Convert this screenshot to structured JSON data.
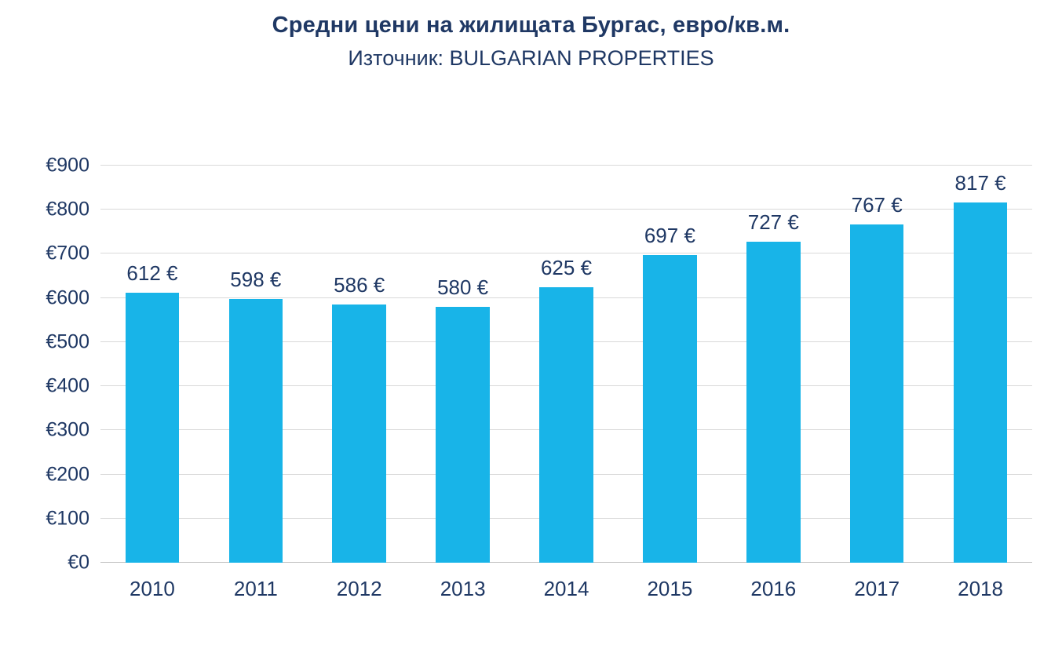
{
  "chart_data": {
    "type": "bar",
    "title": "Средни цени на жилищата Бургас, евро/кв.м.",
    "subtitle": "Източник: BULGARIAN PROPERTIES",
    "categories": [
      "2010",
      "2011",
      "2012",
      "2013",
      "2014",
      "2015",
      "2016",
      "2017",
      "2018"
    ],
    "values": [
      612,
      598,
      586,
      580,
      625,
      697,
      727,
      767,
      817
    ],
    "data_labels": [
      "612 €",
      "598 €",
      "586 €",
      "580 €",
      "625 €",
      "697 €",
      "727 €",
      "767 €",
      "817 €"
    ],
    "xlabel": "",
    "ylabel": "",
    "ylim": [
      0,
      900
    ],
    "ytick_step": 100,
    "ytick_labels": [
      "€0",
      "€100",
      "€200",
      "€300",
      "€400",
      "€500",
      "€600",
      "€700",
      "€800",
      "€900"
    ],
    "grid": true,
    "legend_position": "none",
    "bar_color": "#18B4E8",
    "text_color": "#1F3864",
    "gridline_color": "#D9D9D9"
  }
}
